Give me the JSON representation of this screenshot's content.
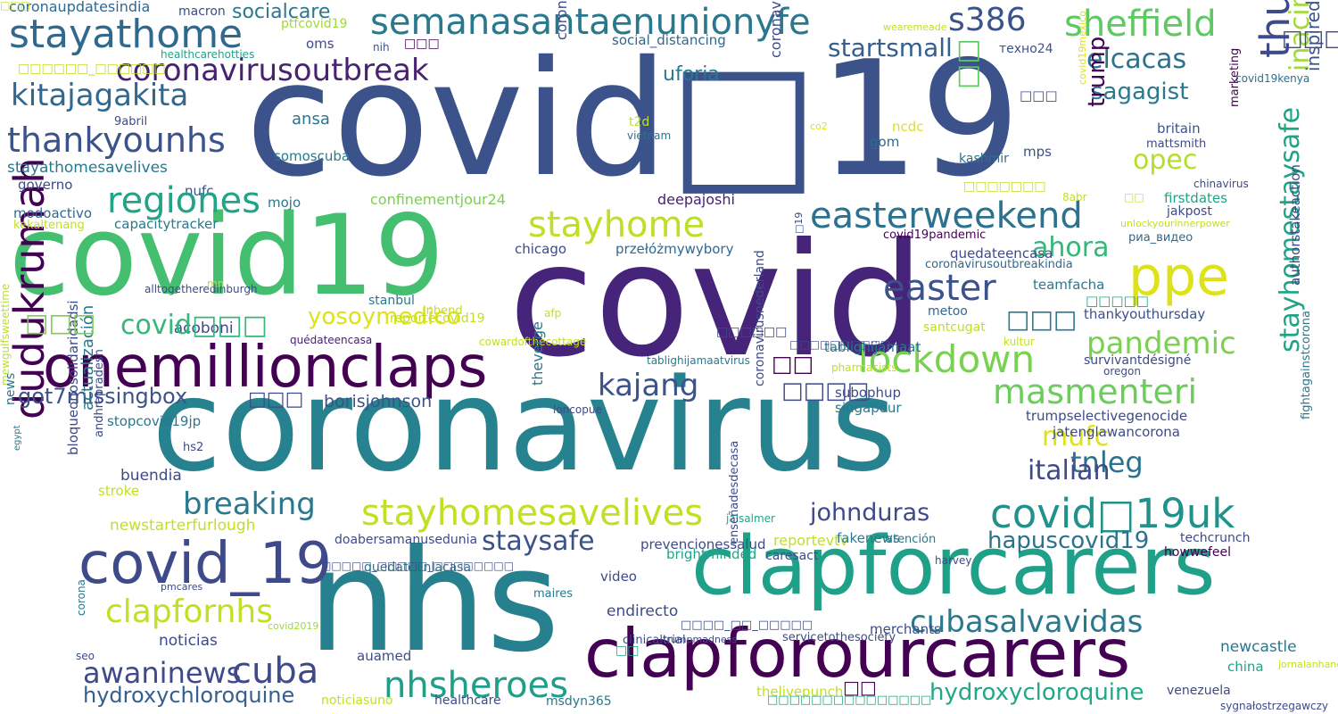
{
  "words": [
    {
      "text": "covid□19",
      "color": "#3b528b"
    },
    {
      "text": "covid",
      "color": "#46247a"
    },
    {
      "text": "covid19",
      "color": "#44bf70"
    },
    {
      "text": "coronavirus",
      "color": "#26828e"
    },
    {
      "text": "nhs",
      "color": "#27808e"
    },
    {
      "text": "clapforcarers",
      "color": "#1fa088"
    },
    {
      "text": "clapforourcarers",
      "color": "#440154"
    },
    {
      "text": "onemillionclaps",
      "color": "#440154"
    },
    {
      "text": "covid_19",
      "color": "#3e4a89"
    },
    {
      "text": "stayathome",
      "color": "#31688e"
    },
    {
      "text": "semanasantaenunionyfe",
      "color": "#2a788e"
    },
    {
      "text": "coronavirusoutbreak",
      "color": "#482173"
    },
    {
      "text": "kitajagakita",
      "color": "#31688e"
    },
    {
      "text": "thankyounhs",
      "color": "#3b528b"
    },
    {
      "text": "sheffield",
      "color": "#5ec962"
    },
    {
      "text": "s386",
      "color": "#3b528b"
    },
    {
      "text": "ppe",
      "color": "#dde318"
    },
    {
      "text": "easterweekend",
      "color": "#2c728e"
    },
    {
      "text": "thursdaythoughts",
      "color": "#3e4a89"
    },
    {
      "text": "stayhome",
      "color": "#bddf26"
    },
    {
      "text": "lockdown",
      "color": "#7ad151"
    },
    {
      "text": "masmenteri",
      "color": "#6ccd5a"
    },
    {
      "text": "dudukrumah",
      "color": "#440154"
    },
    {
      "text": "stayhomesavelives",
      "color": "#c2df23"
    },
    {
      "text": "covid□19uk",
      "color": "#21918c"
    },
    {
      "text": "easter",
      "color": "#3b528b"
    },
    {
      "text": "pandemic",
      "color": "#7ad151"
    },
    {
      "text": "ahora",
      "color": "#35b779"
    },
    {
      "text": "opec",
      "color": "#b5de2b"
    },
    {
      "text": "elcacas",
      "color": "#2c728e"
    },
    {
      "text": "sagagist",
      "color": "#2a788e"
    },
    {
      "text": "startsmall",
      "color": "#355f8d"
    },
    {
      "text": "cubasalvavidas",
      "color": "#2a788e"
    },
    {
      "text": "cuba",
      "color": "#3e4a89"
    },
    {
      "text": "nhsheroes",
      "color": "#1f9e89"
    },
    {
      "text": "awaninews",
      "color": "#3e4a89"
    },
    {
      "text": "clapfornhs",
      "color": "#c2df23"
    },
    {
      "text": "breaking",
      "color": "#2a788e"
    },
    {
      "text": "staysafe",
      "color": "#3b528b"
    },
    {
      "text": "hapuscovid19",
      "color": "#2c728e"
    },
    {
      "text": "tnleg",
      "color": "#2c728e"
    },
    {
      "text": "italian",
      "color": "#3e4a89"
    },
    {
      "text": "mufc",
      "color": "#dde318"
    },
    {
      "text": "yosoymedico",
      "color": "#dde318"
    },
    {
      "text": "kajang",
      "color": "#3b528b"
    },
    {
      "text": "got7missingbox",
      "color": "#3b528b"
    },
    {
      "text": "hydroxychloroquine",
      "color": "#355f8d"
    },
    {
      "text": "hydroxycloroquine",
      "color": "#22a884"
    },
    {
      "text": "inacinforma",
      "color": "#a0da39"
    },
    {
      "text": "stayhomestaysafe",
      "color": "#20a486"
    },
    {
      "text": "inspiredbykindness",
      "color": "#3b528b"
    },
    {
      "text": "trump",
      "color": "#440154"
    },
    {
      "text": "uforia",
      "color": "#2a788e"
    },
    {
      "text": "socialcare",
      "color": "#2a788e"
    },
    {
      "text": "coronaupdatesindia",
      "color": "#31688e"
    },
    {
      "text": "macron",
      "color": "#3e4a89"
    },
    {
      "text": "ptfcovid19",
      "color": "#a0da39"
    },
    {
      "text": "oms",
      "color": "#3e4a89"
    },
    {
      "text": "nih",
      "color": "#3b528b"
    },
    {
      "text": "social_distancing",
      "color": "#31688e"
    },
    {
      "text": "техно24",
      "color": "#3b528b"
    },
    {
      "text": "wearemeade",
      "color": "#c2df23"
    },
    {
      "text": "covid19kenya",
      "color": "#2c728e"
    },
    {
      "text": "healthcarehotties",
      "color": "#20a486"
    },
    {
      "text": "coronavirusupdate",
      "color": "#3e4a89"
    },
    {
      "text": "coronavirusecuador",
      "color": "#3e4a89"
    },
    {
      "text": "ansa",
      "color": "#2a788e"
    },
    {
      "text": "stayathomesavelives",
      "color": "#2a788e"
    },
    {
      "text": "governo",
      "color": "#3e4a89"
    },
    {
      "text": "nufc",
      "color": "#3b528b"
    },
    {
      "text": "modoactivo",
      "color": "#31688e"
    },
    {
      "text": "kekaltenang",
      "color": "#c2df23"
    },
    {
      "text": "capacitytracker",
      "color": "#2a788e"
    },
    {
      "text": "confinementjour24",
      "color": "#7ad151"
    },
    {
      "text": "mojo",
      "color": "#2a788e"
    },
    {
      "text": "somoscuba",
      "color": "#2a788e"
    },
    {
      "text": "9abril",
      "color": "#3e4a89"
    },
    {
      "text": "t2d",
      "color": "#bddf26"
    },
    {
      "text": "vietnam",
      "color": "#2c728e"
    },
    {
      "text": "deepajoshi",
      "color": "#482173"
    },
    {
      "text": "chicago",
      "color": "#3e4a89"
    },
    {
      "text": "przełóżmywybory",
      "color": "#31688e"
    },
    {
      "text": "quedateencasa",
      "color": "#3e4a89"
    },
    {
      "text": "teamfacha",
      "color": "#2a788e"
    },
    {
      "text": "thankyouthursday",
      "color": "#3b528b"
    },
    {
      "text": "covid19pandemic",
      "color": "#440154"
    },
    {
      "text": "coronavirusoutbreakindia",
      "color": "#31688e"
    },
    {
      "text": "риа_видео",
      "color": "#31688e"
    },
    {
      "text": "jakpost",
      "color": "#3e4a89"
    },
    {
      "text": "unlockyourinnerpower",
      "color": "#c2df23"
    },
    {
      "text": "firstdates",
      "color": "#20a486"
    },
    {
      "text": "8abr",
      "color": "#c2df23"
    },
    {
      "text": "chinavirus",
      "color": "#3e4a89"
    },
    {
      "text": "marketing",
      "color": "#440154"
    },
    {
      "text": "britain",
      "color": "#3b528b"
    },
    {
      "text": "mattsmith",
      "color": "#3e4a89"
    },
    {
      "text": "kashmir",
      "color": "#2c728e"
    },
    {
      "text": "mps",
      "color": "#3b528b"
    },
    {
      "text": "gom",
      "color": "#31688e"
    },
    {
      "text": "co2",
      "color": "#dde318"
    },
    {
      "text": "ncdc",
      "color": "#dde318"
    },
    {
      "text": "covid19mexico",
      "color": "#dde318"
    },
    {
      "text": "santcugat",
      "color": "#bddf26"
    },
    {
      "text": "metoo",
      "color": "#31688e"
    },
    {
      "text": "kultur",
      "color": "#c2df23"
    },
    {
      "text": "survivantdésigné",
      "color": "#3e4a89"
    },
    {
      "text": "oregon",
      "color": "#3e4a89"
    },
    {
      "text": "authorstakeaction",
      "color": "#3e4a89"
    },
    {
      "text": "fightagainstcorona",
      "color": "#2a788e"
    },
    {
      "text": "mewgulfsweettime",
      "color": "#bddf26"
    },
    {
      "text": "alltogetheredinburgh",
      "color": "#3e4a89"
    },
    {
      "text": "mn",
      "color": "#c2df23"
    },
    {
      "text": "afp",
      "color": "#c2df23"
    },
    {
      "text": "inbend",
      "color": "#c2df23"
    },
    {
      "text": "stanbul",
      "color": "#2a788e"
    },
    {
      "text": "□19",
      "color": "#3e4a89"
    },
    {
      "text": "reportecovid19",
      "color": "#c2df23"
    },
    {
      "text": "iacoboni",
      "color": "#3e4a89"
    },
    {
      "text": "quédateencasa",
      "color": "#482173"
    },
    {
      "text": "cowardofthecottage",
      "color": "#c2df23"
    },
    {
      "text": "tablighijamaatvirus",
      "color": "#2a788e"
    },
    {
      "text": "tablighijamaat",
      "color": "#2a788e"
    },
    {
      "text": "pharmacists",
      "color": "#bddf26"
    },
    {
      "text": "subophup",
      "color": "#3e4a89"
    },
    {
      "text": "singapour",
      "color": "#2a788e"
    },
    {
      "text": "borisjohnson",
      "color": "#3b528b"
    },
    {
      "text": "trumpselectivegenocide",
      "color": "#3e4a89"
    },
    {
      "text": "jatenglawancorona",
      "color": "#3e4a89"
    },
    {
      "text": "coronavirusnederland",
      "color": "#3e4a89"
    },
    {
      "text": "loncopue",
      "color": "#3e4a89"
    },
    {
      "text": "theverge",
      "color": "#2a788e"
    },
    {
      "text": "actualización",
      "color": "#2a788e"
    },
    {
      "text": "stopcovid19jp",
      "color": "#2a788e"
    },
    {
      "text": "andhrapradesh",
      "color": "#3e4a89"
    },
    {
      "text": "hs2",
      "color": "#3e4a89"
    },
    {
      "text": "buendia",
      "color": "#3e4a89"
    },
    {
      "text": "stroke",
      "color": "#c2df23"
    },
    {
      "text": "news",
      "color": "#2a788e"
    },
    {
      "text": "egypt",
      "color": "#2a788e"
    },
    {
      "text": "bloqueonosolidaridadsi",
      "color": "#3e4a89"
    },
    {
      "text": "newstarterfurlough",
      "color": "#c2df23"
    },
    {
      "text": "doabersamanusedunia",
      "color": "#3e4a89"
    },
    {
      "text": "prevencionessalud",
      "color": "#3e4a89"
    },
    {
      "text": "reportevtv",
      "color": "#c2df23"
    },
    {
      "text": "fakenews",
      "color": "#2a788e"
    },
    {
      "text": "atención",
      "color": "#2a788e"
    },
    {
      "text": "techcrunch",
      "color": "#3e4a89"
    },
    {
      "text": "howwefeel",
      "color": "#440154"
    },
    {
      "text": "jaisalmer",
      "color": "#20a486"
    },
    {
      "text": "brightminded",
      "color": "#20a486"
    },
    {
      "text": "caresact",
      "color": "#3e4a89"
    },
    {
      "text": "harvey",
      "color": "#3e4a89"
    },
    {
      "text": "quedateenlacasa",
      "color": "#2a788e"
    },
    {
      "text": "video",
      "color": "#3e4a89"
    },
    {
      "text": "enseñadesdecasa",
      "color": "#3e4a89"
    },
    {
      "text": "pmcares",
      "color": "#3e4a89"
    },
    {
      "text": "maires",
      "color": "#2a788e"
    },
    {
      "text": "endirecto",
      "color": "#3e4a89"
    },
    {
      "text": "clinicaltrial",
      "color": "#3e4a89"
    },
    {
      "text": "merchants",
      "color": "#3e4a89"
    },
    {
      "text": "newcastle",
      "color": "#2a788e"
    },
    {
      "text": "china",
      "color": "#20a486"
    },
    {
      "text": "noticias",
      "color": "#3e4a89"
    },
    {
      "text": "corona",
      "color": "#2a788e"
    },
    {
      "text": "covid2019",
      "color": "#a0da39"
    },
    {
      "text": "seo",
      "color": "#3e4a89"
    },
    {
      "text": "auamed",
      "color": "#3e4a89"
    },
    {
      "text": "trumpmadness",
      "color": "#3e4a89"
    },
    {
      "text": "servicetothesociety",
      "color": "#3e4a89"
    },
    {
      "text": "thelivepunch",
      "color": "#c2df23"
    },
    {
      "text": "noticiasuno",
      "color": "#c2df23"
    },
    {
      "text": "healthcare",
      "color": "#3e4a89"
    },
    {
      "text": "msdyn365",
      "color": "#2a788e"
    },
    {
      "text": "venezuela",
      "color": "#3e4a89"
    },
    {
      "text": "sygnałostrzegawczy",
      "color": "#3e4a89"
    },
    {
      "text": "jornalanhanguera",
      "color": "#c2df23"
    },
    {
      "text": "johnduras",
      "color": "#3e4a89"
    },
    {
      "text": "regiones",
      "color": "#20a486"
    },
    {
      "text": "covid□□□",
      "color": "#35b779"
    },
    {
      "text": "□□□",
      "color": "#7ad151"
    },
    {
      "text": "□□",
      "color": "#5ec962"
    },
    {
      "text": "□□□",
      "color": "#2a788e"
    },
    {
      "text": "□□",
      "color": "#440154"
    },
    {
      "text": "□□□□",
      "color": "#3e4a89"
    },
    {
      "text": "□□",
      "color": "#440154"
    },
    {
      "text": "□□□",
      "color": "#3e4a89"
    },
    {
      "text": "□□□□□",
      "color": "#20a486"
    },
    {
      "text": "□□□□□□",
      "color": "#3e4a89"
    },
    {
      "text": "□□□",
      "color": "#440154"
    },
    {
      "text": "□□□□□□_□□□□□□",
      "color": "#c2df23"
    },
    {
      "text": "□□□□_□□_□□□□□",
      "color": "#3e4a89"
    },
    {
      "text": "□□□□□_□□□□□_□□□□□□□□",
      "color": "#3e4a89"
    },
    {
      "text": "□□□□□□□□□□□□□□□",
      "color": "#20a486"
    },
    {
      "text": "□□□□□□□□□□",
      "color": "#3e4a89"
    },
    {
      "text": "□□□□□□□",
      "color": "#c2df23"
    },
    {
      "text": "□□□□□□",
      "color": "#3e4a89"
    },
    {
      "text": "□□□",
      "color": "#3e4a89"
    },
    {
      "text": "□□",
      "color": "#c2df23"
    },
    {
      "text": "□□",
      "color": "#20a486"
    },
    {
      "text": "□□□",
      "color": "#c2df23"
    }
  ]
}
